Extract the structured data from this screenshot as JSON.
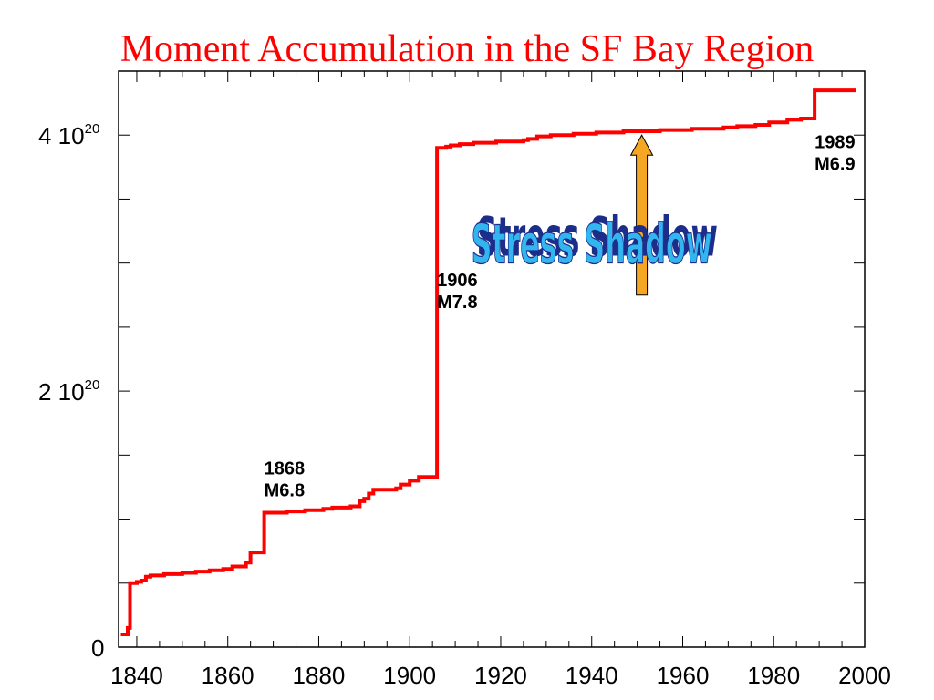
{
  "chart_data": {
    "type": "line",
    "title": "Moment Accumulation in the SF Bay Region",
    "xlabel": "",
    "ylabel": "",
    "xlim": [
      1836,
      2000
    ],
    "ylim": [
      0,
      4.5e+20
    ],
    "x_ticks": [
      {
        "value": 1840,
        "label": "1840"
      },
      {
        "value": 1860,
        "label": "1860"
      },
      {
        "value": 1880,
        "label": "1880"
      },
      {
        "value": 1900,
        "label": "1900"
      },
      {
        "value": 1920,
        "label": "1920"
      },
      {
        "value": 1940,
        "label": "1940"
      },
      {
        "value": 1960,
        "label": "1960"
      },
      {
        "value": 1980,
        "label": "1980"
      },
      {
        "value": 2000,
        "label": "2000"
      }
    ],
    "y_ticks": [
      {
        "value": 0,
        "mantissa": "0",
        "exponent": ""
      },
      {
        "value": 2e+20,
        "mantissa": "2 10",
        "exponent": "20"
      },
      {
        "value": 4e+20,
        "mantissa": "4 10",
        "exponent": "20"
      }
    ],
    "series": [
      {
        "color": "#ff0000",
        "step": true,
        "x": [
          1836.5,
          1838,
          1838.5,
          1840,
          1841,
          1842,
          1843,
          1846,
          1850,
          1853,
          1856,
          1859,
          1861,
          1864,
          1865,
          1868,
          1873,
          1877,
          1881,
          1883,
          1887,
          1889,
          1890,
          1891,
          1892,
          1897,
          1898,
          1900,
          1902,
          1906,
          1908,
          1909,
          1911,
          1914,
          1919,
          1925,
          1926,
          1928,
          1931,
          1936,
          1941,
          1947,
          1955,
          1962,
          1969,
          1972,
          1976,
          1979,
          1983,
          1986,
          1989,
          1998
        ],
        "values": [
          1e+19,
          1.5e+19,
          5e+19,
          5.1e+19,
          5.2e+19,
          5.5e+19,
          5.6e+19,
          5.7e+19,
          5.8e+19,
          5.9e+19,
          6e+19,
          6.1e+19,
          6.3e+19,
          6.6e+19,
          7.4e+19,
          1.05e+20,
          1.06e+20,
          1.07e+20,
          1.08e+20,
          1.09e+20,
          1.1e+20,
          1.14e+20,
          1.16e+20,
          1.2e+20,
          1.23e+20,
          1.24e+20,
          1.27e+20,
          1.3e+20,
          1.33e+20,
          3.9e+20,
          3.91e+20,
          3.92e+20,
          3.93e+20,
          3.94e+20,
          3.95e+20,
          3.96e+20,
          3.97e+20,
          3.99e+20,
          4e+20,
          4.01e+20,
          4.02e+20,
          4.03e+20,
          4.04e+20,
          4.05e+20,
          4.06e+20,
          4.07e+20,
          4.08e+20,
          4.1e+20,
          4.12e+20,
          4.13e+20,
          4.35e+20,
          4.35e+20
        ]
      }
    ],
    "grid": false,
    "annotations": [
      {
        "x": 1868,
        "y": 1.35e+20,
        "line1": "1868",
        "line2": "M6.8"
      },
      {
        "x": 1906,
        "y": 2.82e+20,
        "line1": "1906",
        "line2": "M7.8"
      },
      {
        "x": 1989,
        "y": 3.9e+20,
        "line1": "1989",
        "line2": "M6.9"
      }
    ],
    "arrow": {
      "x": 1951,
      "y_from": 2.75e+20,
      "y_to": 4e+20,
      "color": "#f5a623"
    },
    "callout": {
      "text": "Stress Shadow",
      "x": 1940,
      "y": 3e+20
    }
  }
}
